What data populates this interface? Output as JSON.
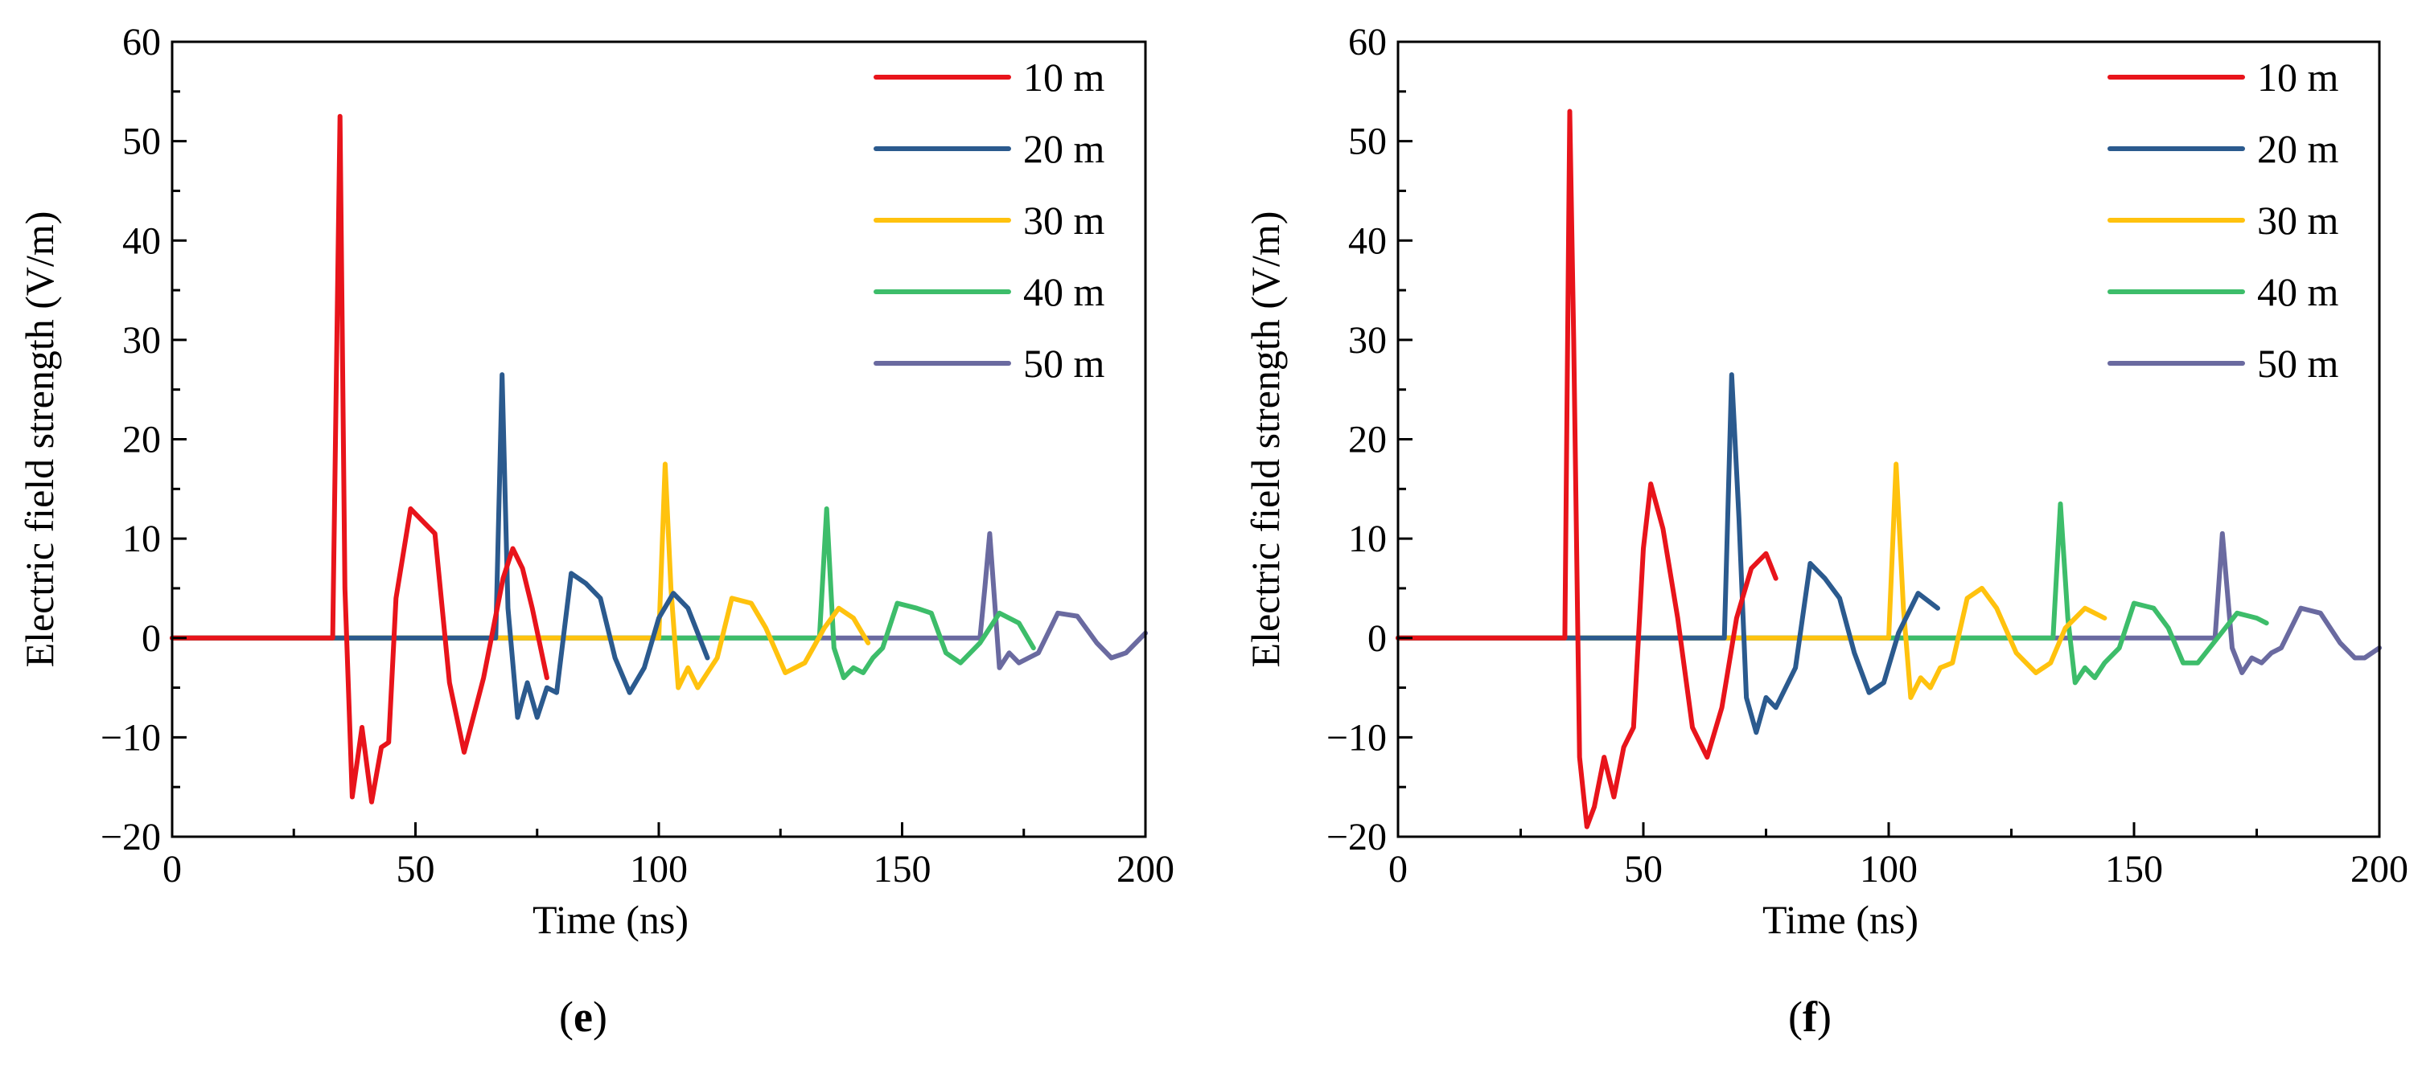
{
  "chart_data": [
    {
      "type": "line",
      "panel_label": "e",
      "xlabel": "Time (ns)",
      "ylabel": "Electric field strength (V/m)",
      "xlim": [
        0,
        200
      ],
      "ylim": [
        -20,
        60
      ],
      "xticks": [
        0,
        50,
        100,
        150,
        200
      ],
      "yticks": [
        -20,
        -10,
        0,
        10,
        20,
        30,
        40,
        50,
        60
      ],
      "xtick_labels": [
        "0",
        "50",
        "100",
        "150",
        "200"
      ],
      "ytick_labels": [
        "−20",
        "−10",
        "0",
        "10",
        "20",
        "30",
        "40",
        "50",
        "60"
      ],
      "legend_position": "top-right",
      "series": [
        {
          "name": "50 m",
          "color": "#6a6aa0",
          "x": [
            0,
            166,
            167,
            168,
            170,
            172,
            174,
            176,
            178,
            182,
            186,
            190,
            193,
            196,
            200
          ],
          "y": [
            0,
            0,
            5,
            10.5,
            -3,
            -1.5,
            -2.5,
            -2,
            -1.5,
            2.5,
            2.2,
            -0.5,
            -2,
            -1.5,
            0.5
          ]
        },
        {
          "name": "40 m",
          "color": "#3dbd6a",
          "x": [
            0,
            133,
            134.5,
            136,
            138,
            140,
            142,
            144,
            146,
            149,
            153,
            156,
            159,
            162,
            166,
            170,
            174,
            177
          ],
          "y": [
            0,
            0,
            13,
            -1,
            -4,
            -3,
            -3.5,
            -2,
            -1,
            3.5,
            3,
            2.5,
            -1.5,
            -2.5,
            -0.5,
            2.5,
            1.5,
            -1
          ]
        },
        {
          "name": "30 m",
          "color": "#ffc20e",
          "x": [
            0,
            100,
            101.3,
            102.5,
            104,
            106,
            108,
            110,
            112,
            115,
            119,
            122,
            126,
            130,
            134,
            137,
            140,
            143
          ],
          "y": [
            0,
            0,
            17.5,
            5,
            -5,
            -3,
            -5,
            -3.5,
            -2,
            4,
            3.5,
            1,
            -3.5,
            -2.5,
            1,
            3,
            2,
            -0.5
          ]
        },
        {
          "name": "20 m",
          "color": "#2b5a8e",
          "x": [
            0,
            66.5,
            67.8,
            69,
            71,
            73,
            75,
            77,
            79,
            82,
            85,
            88,
            91,
            94,
            97,
            100,
            103,
            106,
            110
          ],
          "y": [
            0,
            0,
            26.5,
            3,
            -8,
            -4.5,
            -8,
            -5,
            -5.5,
            6.5,
            5.5,
            4,
            -2,
            -5.5,
            -3,
            2,
            4.5,
            3,
            -2
          ]
        },
        {
          "name": "10 m",
          "color": "#e8141b",
          "x": [
            0,
            30,
            33,
            34.5,
            35.5,
            37,
            39,
            41,
            43,
            44.5,
            46,
            49,
            52,
            54,
            57,
            60,
            64,
            68,
            70,
            72,
            74,
            77
          ],
          "y": [
            0,
            0,
            0,
            52.5,
            5,
            -16,
            -9,
            -16.5,
            -11,
            -10.5,
            4,
            13,
            11.5,
            10.5,
            -4.5,
            -11.5,
            -4,
            6,
            9,
            7,
            3,
            -4
          ]
        }
      ]
    },
    {
      "type": "line",
      "panel_label": "f",
      "xlabel": "Time (ns)",
      "ylabel": "Electric field strength (V/m)",
      "xlim": [
        0,
        200
      ],
      "ylim": [
        -20,
        60
      ],
      "xticks": [
        0,
        50,
        100,
        150,
        200
      ],
      "yticks": [
        -20,
        -10,
        0,
        10,
        20,
        30,
        40,
        50,
        60
      ],
      "xtick_labels": [
        "0",
        "50",
        "100",
        "150",
        "200"
      ],
      "ytick_labels": [
        "−20",
        "−10",
        "0",
        "10",
        "20",
        "30",
        "40",
        "50",
        "60"
      ],
      "legend_position": "top-right",
      "series": [
        {
          "name": "50 m",
          "color": "#6a6aa0",
          "x": [
            0,
            166.5,
            168,
            170,
            172,
            174,
            176,
            178,
            180,
            184,
            188,
            192,
            195,
            197,
            200
          ],
          "y": [
            0,
            0,
            10.5,
            -1,
            -3.5,
            -2,
            -2.5,
            -1.5,
            -1,
            3,
            2.5,
            -0.5,
            -2,
            -2,
            -1
          ]
        },
        {
          "name": "40 m",
          "color": "#3dbd6a",
          "x": [
            0,
            133.5,
            135,
            136.5,
            138,
            140,
            142,
            144,
            147,
            150,
            154,
            157,
            160,
            163,
            167,
            171,
            175,
            177
          ],
          "y": [
            0,
            0,
            13.5,
            2,
            -4.5,
            -3,
            -4,
            -2.5,
            -1,
            3.5,
            3,
            1,
            -2.5,
            -2.5,
            0,
            2.5,
            2,
            1.5
          ]
        },
        {
          "name": "30 m",
          "color": "#ffc20e",
          "x": [
            0,
            100,
            101.5,
            103,
            104.5,
            106.5,
            108.5,
            110.5,
            113,
            116,
            119,
            122,
            126,
            130,
            133,
            136,
            140,
            144
          ],
          "y": [
            0,
            0,
            17.5,
            3,
            -6,
            -4,
            -5,
            -3,
            -2.5,
            4,
            5,
            3,
            -1.5,
            -3.5,
            -2.5,
            1,
            3,
            2
          ]
        },
        {
          "name": "20 m",
          "color": "#2b5a8e",
          "x": [
            0,
            66.5,
            68,
            69.5,
            71,
            73,
            75,
            77,
            79,
            81,
            84,
            87,
            90,
            93,
            96,
            99,
            102,
            106,
            110
          ],
          "y": [
            0,
            0,
            26.5,
            12,
            -6,
            -9.5,
            -6,
            -7,
            -5,
            -3,
            7.5,
            6,
            4,
            -1.5,
            -5.5,
            -4.5,
            0.5,
            4.5,
            3
          ]
        },
        {
          "name": "10 m",
          "color": "#e8141b",
          "x": [
            0,
            34,
            35,
            35.8,
            37,
            38.5,
            40,
            42,
            44,
            46,
            48,
            50,
            51.5,
            54,
            57,
            60,
            63,
            66,
            69,
            72,
            75,
            77
          ],
          "y": [
            0,
            0,
            53,
            30,
            -12,
            -19,
            -17,
            -12,
            -16,
            -11,
            -9,
            9,
            15.5,
            11,
            2,
            -9,
            -12,
            -7,
            2,
            7,
            8.5,
            6
          ]
        }
      ]
    }
  ]
}
